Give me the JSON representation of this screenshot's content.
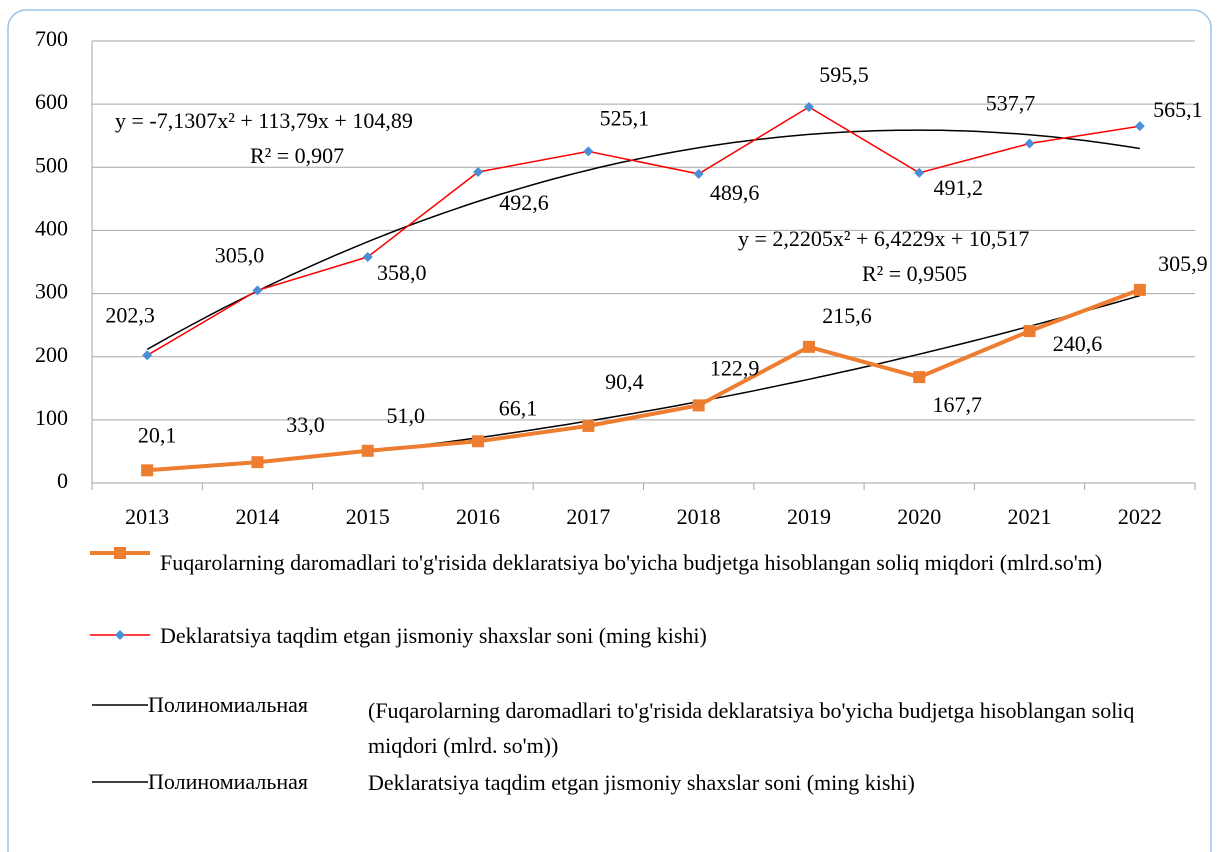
{
  "chart_data": {
    "type": "line",
    "categories": [
      "2013",
      "2014",
      "2015",
      "2016",
      "2017",
      "2018",
      "2019",
      "2020",
      "2021",
      "2022"
    ],
    "ylim": [
      0,
      700
    ],
    "yticks": [
      0,
      100,
      200,
      300,
      400,
      500,
      600,
      700
    ],
    "grid": true,
    "series": [
      {
        "name": "Fuqarolarning daromadlari to'g'risida deklaratsiya bo'yicha budjetga hisoblangan soliq miqdori (mlrd.so'm)",
        "color": "#ed7d31",
        "marker": "square",
        "marker_color": "#ed7d31",
        "values": [
          20.1,
          33.0,
          51.0,
          66.1,
          90.4,
          122.9,
          215.6,
          167.7,
          240.6,
          305.9
        ],
        "value_labels": [
          "20,1",
          "33,0",
          "51,0",
          "66,1",
          "90,4",
          "122,9",
          "215,6",
          "167,7",
          "240,6",
          "305,9"
        ],
        "trendline": {
          "name": "Полиномиальная",
          "of": "(Fuqarolarning daromadlari to'g'risida deklaratsiya bo'yicha budjetga hisoblangan soliq miqdori (mlrd. so'm))",
          "equation": "y = 2,2205x² + 6,4229x + 10,517",
          "r2": "R² = 0,9505",
          "coefficients": [
            2.2205,
            6.4229,
            10.517
          ],
          "color": "#000000"
        }
      },
      {
        "name": "Deklaratsiya taqdim etgan jismoniy shaxslar soni (ming kishi)",
        "color": "#ff0000",
        "marker": "diamond",
        "marker_color": "#4a8fd6",
        "values": [
          202.3,
          305.0,
          358.0,
          492.6,
          525.1,
          489.6,
          595.5,
          491.2,
          537.7,
          565.1
        ],
        "value_labels": [
          "202,3",
          "305,0",
          "358,0",
          "492,6",
          "525,1",
          "489,6",
          "595,5",
          "491,2",
          "537,7",
          "565,1"
        ],
        "trendline": {
          "name": "Полиномиальная",
          "of": "Deklaratsiya taqdim etgan jismoniy shaxslar soni (ming kishi)",
          "equation": "y = -7,1307x² + 113,79x + 104,89",
          "r2": "R² = 0,907",
          "coefficients": [
            -7.1307,
            113.79,
            104.89
          ],
          "color": "#000000"
        }
      }
    ]
  }
}
